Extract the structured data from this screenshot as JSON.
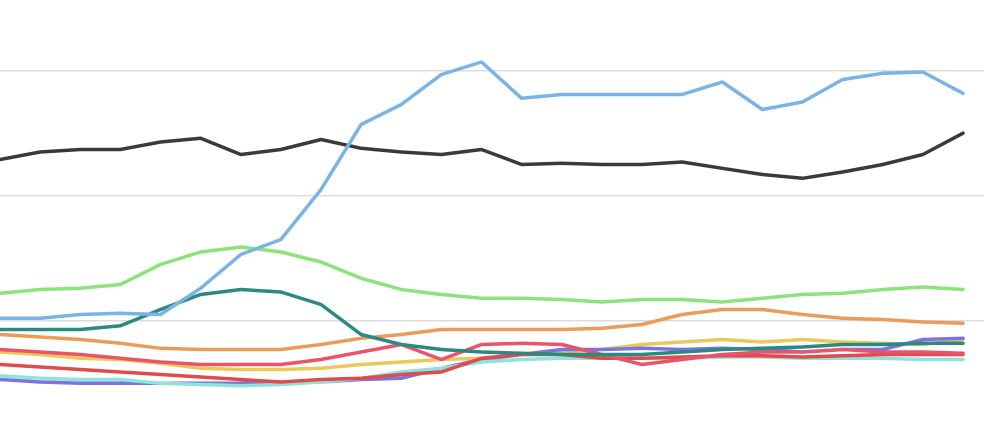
{
  "chart_data": {
    "type": "line",
    "x": [
      0,
      1,
      2,
      3,
      4,
      5,
      6,
      7,
      8,
      9,
      10,
      11,
      12,
      13,
      14,
      15,
      16,
      17,
      18,
      19,
      20,
      21,
      22,
      23,
      24
    ],
    "xlim": [
      0,
      24
    ],
    "ylim": [
      0.15,
      3.55
    ],
    "yticks": [
      1,
      2,
      3
    ],
    "grid": true,
    "series": [
      {
        "color": "#e8c95a",
        "values": [
          0.75,
          0.73,
          0.7,
          0.69,
          0.66,
          0.62,
          0.61,
          0.61,
          0.62,
          0.65,
          0.67,
          0.69,
          0.7,
          0.73,
          0.75,
          0.77,
          0.81,
          0.83,
          0.85,
          0.83,
          0.85,
          0.83,
          0.82,
          0.81,
          0.85
        ]
      },
      {
        "color": "#7b73e0",
        "values": [
          0.53,
          0.51,
          0.5,
          0.5,
          0.5,
          0.5,
          0.5,
          0.5,
          0.51,
          0.53,
          0.54,
          0.62,
          0.69,
          0.73,
          0.77,
          0.77,
          0.78,
          0.77,
          0.78,
          0.77,
          0.75,
          0.77,
          0.77,
          0.85,
          0.86
        ]
      },
      {
        "color": "#8fe3dc",
        "values": [
          0.56,
          0.54,
          0.53,
          0.53,
          0.5,
          0.49,
          0.48,
          0.49,
          0.51,
          0.54,
          0.59,
          0.62,
          0.67,
          0.69,
          0.7,
          0.7,
          0.7,
          0.7,
          0.71,
          0.71,
          0.7,
          0.7,
          0.7,
          0.69,
          0.69
        ]
      },
      {
        "color": "#e04b4b",
        "values": [
          0.65,
          0.63,
          0.61,
          0.59,
          0.57,
          0.55,
          0.53,
          0.51,
          0.53,
          0.54,
          0.57,
          0.59,
          0.7,
          0.73,
          0.73,
          0.7,
          0.7,
          0.71,
          0.72,
          0.72,
          0.71,
          0.72,
          0.73,
          0.73,
          0.73
        ]
      },
      {
        "color": "#e9546b",
        "values": [
          0.77,
          0.75,
          0.73,
          0.7,
          0.67,
          0.65,
          0.65,
          0.65,
          0.69,
          0.75,
          0.81,
          0.69,
          0.81,
          0.82,
          0.81,
          0.73,
          0.65,
          0.69,
          0.73,
          0.75,
          0.75,
          0.77,
          0.75,
          0.75,
          0.74
        ]
      },
      {
        "color": "#eb9c5a",
        "values": [
          0.89,
          0.87,
          0.85,
          0.82,
          0.78,
          0.77,
          0.77,
          0.77,
          0.81,
          0.86,
          0.89,
          0.93,
          0.93,
          0.93,
          0.93,
          0.94,
          0.97,
          1.05,
          1.09,
          1.09,
          1.05,
          1.02,
          1.01,
          0.99,
          0.98
        ]
      },
      {
        "color": "#2a8a82",
        "values": [
          0.93,
          0.93,
          0.93,
          0.96,
          1.09,
          1.21,
          1.25,
          1.23,
          1.13,
          0.89,
          0.81,
          0.77,
          0.75,
          0.74,
          0.73,
          0.73,
          0.73,
          0.75,
          0.77,
          0.78,
          0.79,
          0.81,
          0.81,
          0.82,
          0.82
        ]
      },
      {
        "color": "#8ee27b",
        "values": [
          1.22,
          1.25,
          1.26,
          1.29,
          1.45,
          1.55,
          1.59,
          1.55,
          1.47,
          1.34,
          1.25,
          1.21,
          1.18,
          1.18,
          1.17,
          1.15,
          1.17,
          1.17,
          1.15,
          1.18,
          1.21,
          1.22,
          1.25,
          1.27,
          1.25
        ]
      },
      {
        "color": "#3a3a3c",
        "values": [
          2.29,
          2.35,
          2.37,
          2.37,
          2.43,
          2.46,
          2.33,
          2.37,
          2.45,
          2.38,
          2.35,
          2.33,
          2.37,
          2.25,
          2.26,
          2.25,
          2.25,
          2.27,
          2.22,
          2.17,
          2.14,
          2.19,
          2.25,
          2.33,
          2.5
        ]
      },
      {
        "color": "#7ab3e5",
        "values": [
          1.02,
          1.02,
          1.05,
          1.06,
          1.05,
          1.26,
          1.53,
          1.65,
          2.05,
          2.57,
          2.73,
          2.97,
          3.07,
          2.78,
          2.81,
          2.81,
          2.81,
          2.81,
          2.91,
          2.69,
          2.75,
          2.93,
          2.98,
          2.99,
          2.82
        ]
      }
    ]
  }
}
